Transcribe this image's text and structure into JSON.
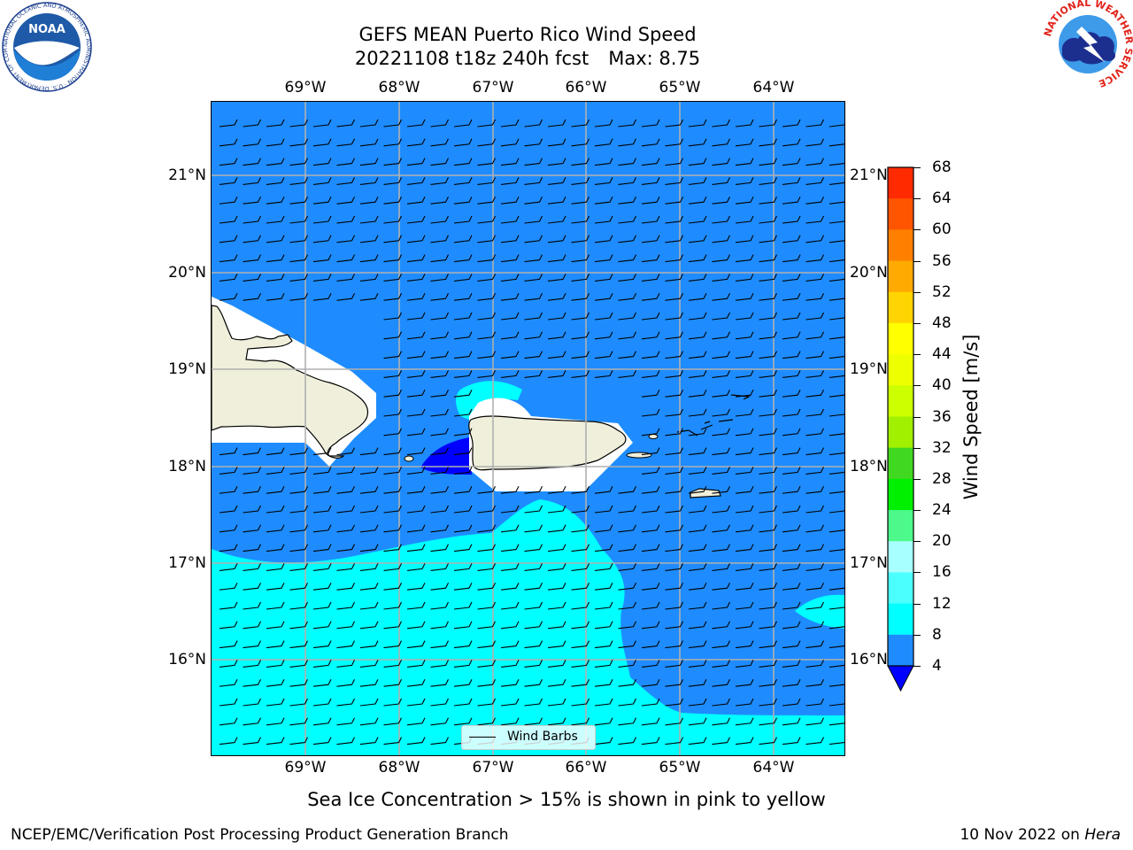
{
  "title": {
    "line1": "GEFS MEAN Puerto Rico Wind Speed",
    "run": "20221108 t18z 240h fcst",
    "max": "Max: 8.75"
  },
  "map": {
    "lon_labels": [
      "69°W",
      "68°W",
      "67°W",
      "66°W",
      "65°W",
      "64°W"
    ],
    "lat_labels": [
      "21°N",
      "20°N",
      "19°N",
      "18°N",
      "17°N",
      "16°N"
    ],
    "legend_label": "Wind Barbs",
    "colors": {
      "ocean_4_8": "#1e8cff",
      "ocean_8_12": "#00ffff",
      "below_4": "#0000ff",
      "land": "#efefdb",
      "grid": "#b0b0b0"
    }
  },
  "colorbar": {
    "title": "Wind Speed [m/s]",
    "ticks": [
      "68",
      "64",
      "60",
      "56",
      "52",
      "48",
      "44",
      "40",
      "36",
      "32",
      "28",
      "24",
      "20",
      "16",
      "12",
      "8",
      "4"
    ],
    "colors": [
      "#ff0000",
      "#ff2a00",
      "#ff5500",
      "#ff8000",
      "#ffaa00",
      "#ffd400",
      "#ffff00",
      "#eeff00",
      "#ccff00",
      "#a0f000",
      "#40d820",
      "#00f000",
      "#4cf98a",
      "#a8ffff",
      "#4cffff",
      "#00ffff",
      "#1e8cff"
    ],
    "under_color": "#0000ff"
  },
  "note": "Sea Ice Concentration > 15% is shown in pink to yellow",
  "footer": {
    "left": "NCEP/EMC/Verification Post Processing Product Generation Branch",
    "date": "10 Nov 2022 on",
    "machine": "Hera"
  },
  "logos": {
    "noaa_text": "NOAA",
    "noaa_ring": "NATIONAL OCEANIC AND ATMOSPHERIC ADMINISTRATION · U.S. DEPARTMENT OF COMMERCE",
    "nws_ring": "NATIONAL WEATHER SERVICE"
  }
}
